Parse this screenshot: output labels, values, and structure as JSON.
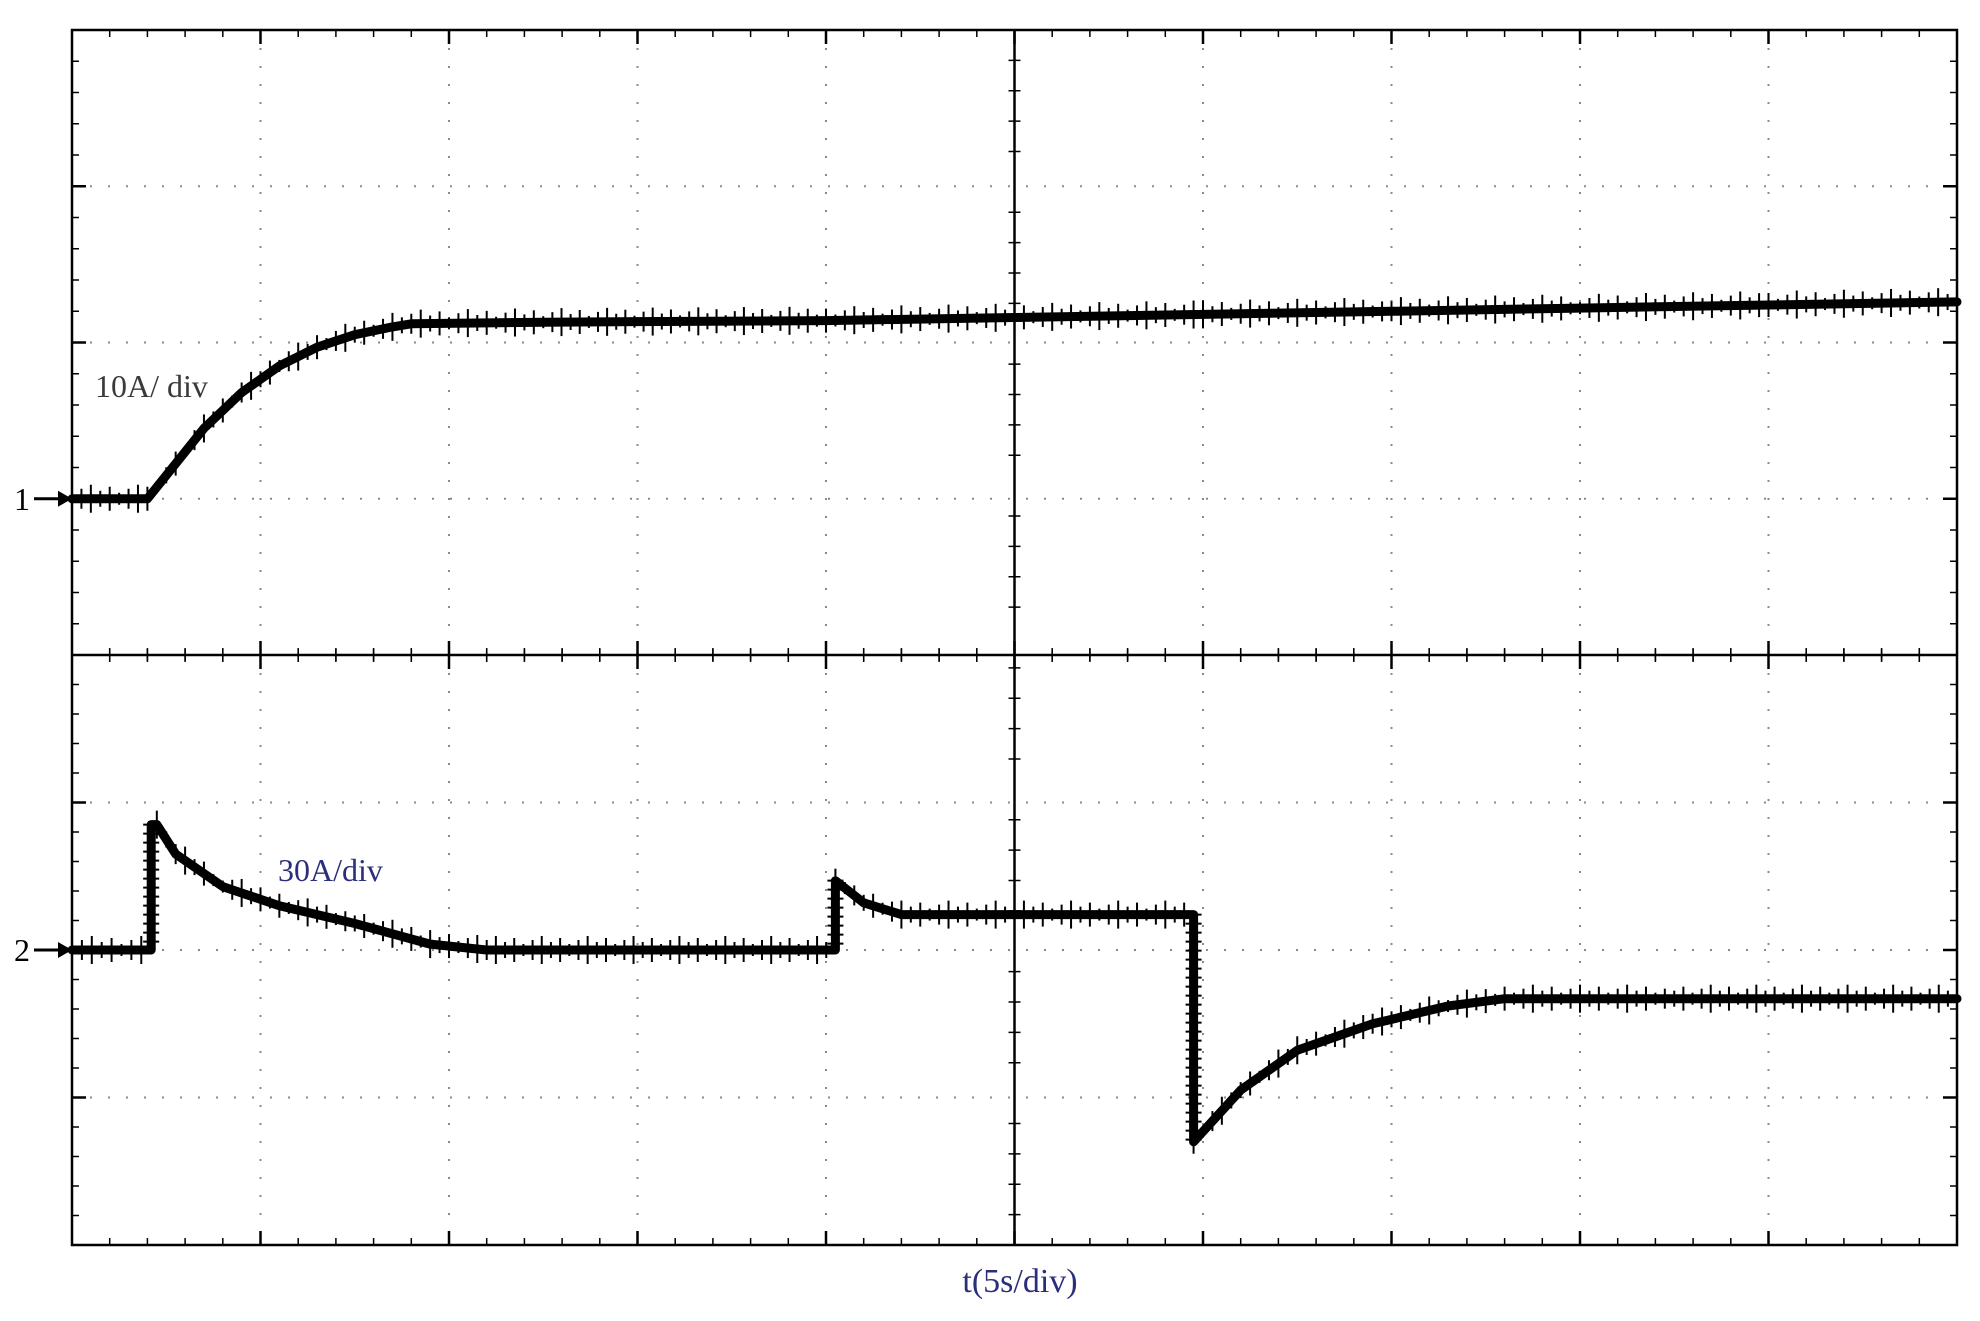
{
  "chart_data": [
    {
      "type": "line",
      "panel": "top",
      "channel_marker": "1",
      "scale_label": "10A/ div",
      "scale_label_color": "#3a3a3a",
      "divisions": {
        "x": 10,
        "y": 4
      },
      "xlim": [
        0,
        10
      ],
      "ylim": [
        -1,
        3
      ],
      "trace_color": "#000000",
      "series": [
        {
          "values": [
            [
              0,
              0
            ],
            [
              0.4,
              0
            ],
            [
              0.5,
              0.15
            ],
            [
              0.7,
              0.45
            ],
            [
              0.9,
              0.68
            ],
            [
              1.1,
              0.85
            ],
            [
              1.3,
              0.97
            ],
            [
              1.5,
              1.05
            ],
            [
              1.7,
              1.1
            ],
            [
              1.8,
              1.12
            ],
            [
              2.5,
              1.13
            ],
            [
              4,
              1.14
            ],
            [
              5,
              1.16
            ],
            [
              6,
              1.18
            ],
            [
              7,
              1.2
            ],
            [
              8,
              1.22
            ],
            [
              9,
              1.24
            ],
            [
              10,
              1.26
            ]
          ]
        }
      ]
    },
    {
      "type": "line",
      "panel": "bottom",
      "channel_marker": "2",
      "scale_label": "30A/div",
      "scale_label_color": "#2b2e7a",
      "divisions": {
        "x": 10,
        "y": 4
      },
      "xlim": [
        0,
        10
      ],
      "ylim": [
        -2,
        2
      ],
      "trace_color": "#000000",
      "series": [
        {
          "values": [
            [
              0,
              0
            ],
            [
              0.42,
              0
            ],
            [
              0.42,
              0.85
            ],
            [
              0.45,
              0.85
            ],
            [
              0.55,
              0.65
            ],
            [
              0.8,
              0.43
            ],
            [
              1.1,
              0.3
            ],
            [
              1.5,
              0.18
            ],
            [
              1.9,
              0.04
            ],
            [
              2.2,
              0
            ],
            [
              4.05,
              0
            ],
            [
              4.05,
              0.47
            ],
            [
              4.2,
              0.32
            ],
            [
              4.4,
              0.24
            ],
            [
              5,
              0.24
            ],
            [
              5.95,
              0.24
            ],
            [
              5.95,
              -1.3
            ],
            [
              6.2,
              -0.95
            ],
            [
              6.5,
              -0.68
            ],
            [
              6.9,
              -0.5
            ],
            [
              7.3,
              -0.38
            ],
            [
              7.6,
              -0.33
            ],
            [
              8.5,
              -0.33
            ],
            [
              10,
              -0.33
            ]
          ]
        }
      ]
    }
  ],
  "xlabel": "t(5s/div)",
  "xlabel_color": "#2b2e7a"
}
